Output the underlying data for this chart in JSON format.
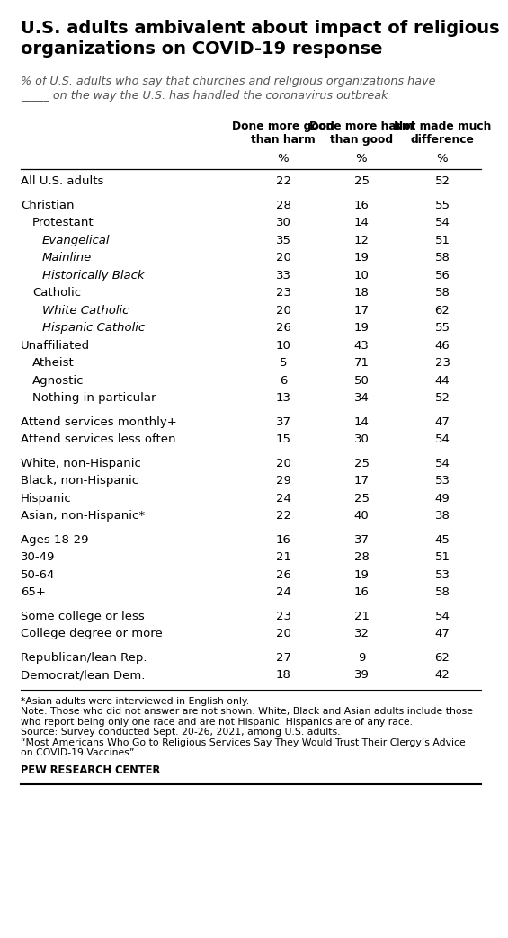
{
  "title": "U.S. adults ambivalent about impact of religious\norganizations on COVID-19 response",
  "subtitle": "% of U.S. adults who say that churches and religious organizations have\n_____ on the way the U.S. has handled the coronavirus outbreak",
  "col_headers": [
    "Done more good\nthan harm",
    "Done more harm\nthan good",
    "Not made much\ndifference"
  ],
  "col_subheaders": [
    "%",
    "%",
    "%"
  ],
  "rows": [
    {
      "label": "All U.S. adults",
      "values": [
        22,
        25,
        52
      ],
      "indent": 0,
      "italic": false,
      "spacer_above": false
    },
    {
      "label": "Christian",
      "values": [
        28,
        16,
        55
      ],
      "indent": 0,
      "italic": false,
      "spacer_above": true
    },
    {
      "label": "Protestant",
      "values": [
        30,
        14,
        54
      ],
      "indent": 1,
      "italic": false,
      "spacer_above": false
    },
    {
      "label": "Evangelical",
      "values": [
        35,
        12,
        51
      ],
      "indent": 2,
      "italic": true,
      "spacer_above": false
    },
    {
      "label": "Mainline",
      "values": [
        20,
        19,
        58
      ],
      "indent": 2,
      "italic": true,
      "spacer_above": false
    },
    {
      "label": "Historically Black",
      "values": [
        33,
        10,
        56
      ],
      "indent": 2,
      "italic": true,
      "spacer_above": false
    },
    {
      "label": "Catholic",
      "values": [
        23,
        18,
        58
      ],
      "indent": 1,
      "italic": false,
      "spacer_above": false
    },
    {
      "label": "White Catholic",
      "values": [
        20,
        17,
        62
      ],
      "indent": 2,
      "italic": true,
      "spacer_above": false
    },
    {
      "label": "Hispanic Catholic",
      "values": [
        26,
        19,
        55
      ],
      "indent": 2,
      "italic": true,
      "spacer_above": false
    },
    {
      "label": "Unaffiliated",
      "values": [
        10,
        43,
        46
      ],
      "indent": 0,
      "italic": false,
      "spacer_above": false
    },
    {
      "label": "Atheist",
      "values": [
        5,
        71,
        23
      ],
      "indent": 1,
      "italic": false,
      "spacer_above": false
    },
    {
      "label": "Agnostic",
      "values": [
        6,
        50,
        44
      ],
      "indent": 1,
      "italic": false,
      "spacer_above": false
    },
    {
      "label": "Nothing in particular",
      "values": [
        13,
        34,
        52
      ],
      "indent": 1,
      "italic": false,
      "spacer_above": false
    },
    {
      "label": "Attend services monthly+",
      "values": [
        37,
        14,
        47
      ],
      "indent": 0,
      "italic": false,
      "spacer_above": true
    },
    {
      "label": "Attend services less often",
      "values": [
        15,
        30,
        54
      ],
      "indent": 0,
      "italic": false,
      "spacer_above": false
    },
    {
      "label": "White, non-Hispanic",
      "values": [
        20,
        25,
        54
      ],
      "indent": 0,
      "italic": false,
      "spacer_above": true
    },
    {
      "label": "Black, non-Hispanic",
      "values": [
        29,
        17,
        53
      ],
      "indent": 0,
      "italic": false,
      "spacer_above": false
    },
    {
      "label": "Hispanic",
      "values": [
        24,
        25,
        49
      ],
      "indent": 0,
      "italic": false,
      "spacer_above": false
    },
    {
      "label": "Asian, non-Hispanic*",
      "values": [
        22,
        40,
        38
      ],
      "indent": 0,
      "italic": false,
      "spacer_above": false
    },
    {
      "label": "Ages 18-29",
      "values": [
        16,
        37,
        45
      ],
      "indent": 0,
      "italic": false,
      "spacer_above": true
    },
    {
      "label": "30-49",
      "values": [
        21,
        28,
        51
      ],
      "indent": 0,
      "italic": false,
      "spacer_above": false
    },
    {
      "label": "50-64",
      "values": [
        26,
        19,
        53
      ],
      "indent": 0,
      "italic": false,
      "spacer_above": false
    },
    {
      "label": "65+",
      "values": [
        24,
        16,
        58
      ],
      "indent": 0,
      "italic": false,
      "spacer_above": false
    },
    {
      "label": "Some college or less",
      "values": [
        23,
        21,
        54
      ],
      "indent": 0,
      "italic": false,
      "spacer_above": true
    },
    {
      "label": "College degree or more",
      "values": [
        20,
        32,
        47
      ],
      "indent": 0,
      "italic": false,
      "spacer_above": false
    },
    {
      "label": "Republican/lean Rep.",
      "values": [
        27,
        9,
        62
      ],
      "indent": 0,
      "italic": false,
      "spacer_above": true
    },
    {
      "label": "Democrat/lean Dem.",
      "values": [
        18,
        39,
        42
      ],
      "indent": 0,
      "italic": false,
      "spacer_above": false
    }
  ],
  "footnotes": [
    "*Asian adults were interviewed in English only.",
    "Note: Those who did not answer are not shown. White, Black and Asian adults include those",
    "who report being only one race and are not Hispanic. Hispanics are of any race.",
    "Source: Survey conducted Sept. 20-26, 2021, among U.S. adults.",
    "“Most Americans Who Go to Religious Services Say They Would Trust Their Clergy’s Advice",
    "on COVID-19 Vaccines”"
  ],
  "source_bold": "PEW RESEARCH CENTER",
  "bg_color": "#ffffff",
  "text_color": "#000000",
  "title_fontsize": 14.0,
  "subtitle_fontsize": 9.2,
  "header_fontsize": 8.8,
  "data_fontsize": 9.5,
  "footnote_fontsize": 7.8
}
